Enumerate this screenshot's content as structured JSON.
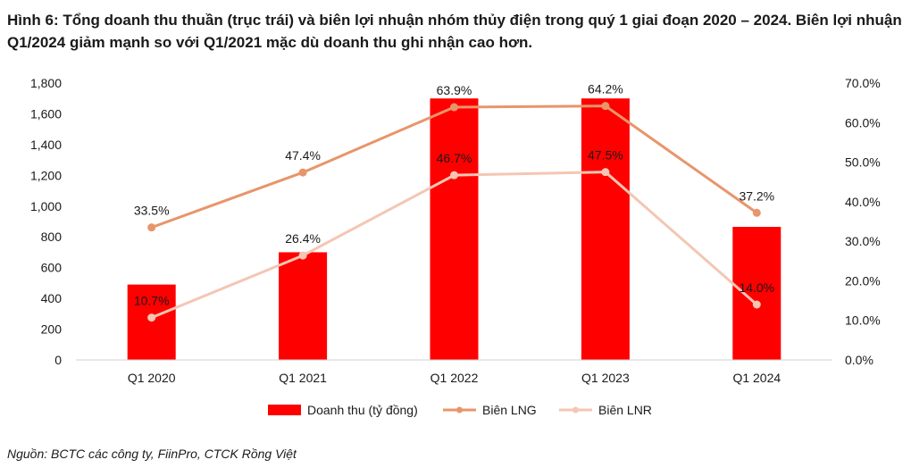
{
  "title": "Hình 6: Tổng doanh thu thuần (trục trái) và biên lợi nhuận nhóm thủy điện trong quý 1 giai đoạn 2020 – 2024. Biên lợi nhuận Q1/2024 giảm mạnh so với Q1/2021 mặc dù doanh thu ghi nhận cao hơn.",
  "source": "Nguồn: BCTC các công ty, FiinPro, CTCK Rồng Việt",
  "colors": {
    "bar": "#ff0000",
    "lng": "#e8956b",
    "lnr": "#f4c6b3"
  },
  "chart_data": {
    "type": "bar",
    "categories": [
      "Q1 2020",
      "Q1 2021",
      "Q1 2022",
      "Q1 2023",
      "Q1 2024"
    ],
    "series": [
      {
        "name": "Doanh thu (tỷ đồng)",
        "type": "bar",
        "axis": "left",
        "values": [
          490,
          700,
          1700,
          1700,
          865
        ]
      },
      {
        "name": "Biên LNG",
        "type": "line",
        "axis": "right",
        "values": [
          33.5,
          47.4,
          63.9,
          64.2,
          37.2
        ],
        "labels": [
          "33.5%",
          "47.4%",
          "63.9%",
          "64.2%",
          "37.2%"
        ]
      },
      {
        "name": "Biên LNR",
        "type": "line",
        "axis": "right",
        "values": [
          10.7,
          26.4,
          46.7,
          47.5,
          14.0
        ],
        "labels": [
          "10.7%",
          "26.4%",
          "46.7%",
          "47.5%",
          "14.0%"
        ]
      }
    ],
    "y_left": {
      "ylim": [
        0,
        1800
      ],
      "ticks": [
        "0",
        "200",
        "400",
        "600",
        "800",
        "1,000",
        "1,200",
        "1,400",
        "1,600",
        "1,800"
      ]
    },
    "y_right": {
      "ylim": [
        0,
        70
      ],
      "ticks": [
        "0.0%",
        "10.0%",
        "20.0%",
        "30.0%",
        "40.0%",
        "50.0%",
        "60.0%",
        "70.0%"
      ]
    },
    "grid": false,
    "legend": "bottom"
  }
}
